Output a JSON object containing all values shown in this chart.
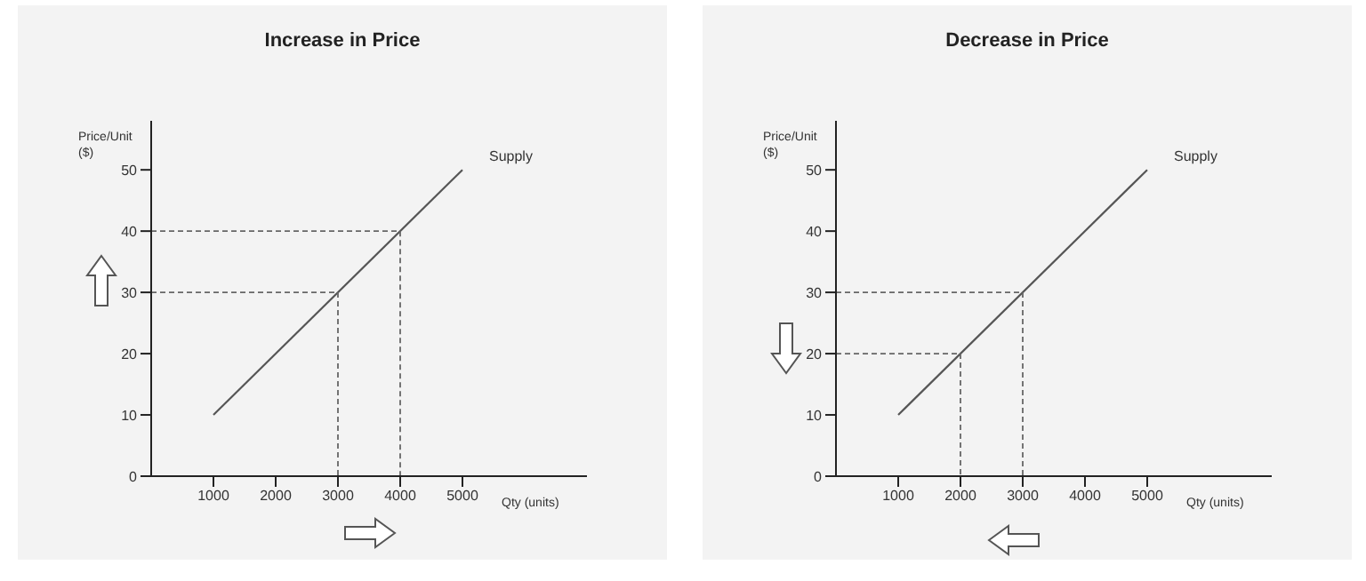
{
  "chart_data": [
    {
      "type": "line",
      "title": "Increase in Price",
      "xlabel": "Qty (units)",
      "ylabel": "Price/Unit ($)",
      "xlim": [
        0,
        7000
      ],
      "ylim": [
        0,
        58
      ],
      "xticks": [
        1000,
        2000,
        3000,
        4000,
        5000
      ],
      "yticks": [
        0,
        10,
        20,
        30,
        40,
        50
      ],
      "grid": false,
      "marker": "none",
      "series": [
        {
          "name": "Supply",
          "color": "#555555",
          "x": [
            1000,
            5000
          ],
          "values": [
            10,
            50
          ]
        },
        {
          "color": "#666666",
          "line_style": "dashed",
          "x": [
            0,
            3000,
            3000
          ],
          "values": [
            30,
            30,
            0
          ]
        },
        {
          "color": "#666666",
          "line_style": "dashed",
          "x": [
            0,
            4000,
            4000
          ],
          "values": [
            40,
            40,
            0
          ]
        }
      ]
    },
    {
      "type": "line",
      "title": "Decrease in Price",
      "xlabel": "Qty (units)",
      "ylabel": "Price/Unit ($)",
      "xlim": [
        0,
        7000
      ],
      "ylim": [
        0,
        58
      ],
      "xticks": [
        1000,
        2000,
        3000,
        4000,
        5000
      ],
      "yticks": [
        0,
        10,
        20,
        30,
        40,
        50
      ],
      "grid": false,
      "marker": "none",
      "series": [
        {
          "name": "Supply",
          "color": "#555555",
          "x": [
            1000,
            5000
          ],
          "values": [
            10,
            50
          ]
        },
        {
          "color": "#666666",
          "line_style": "dashed",
          "x": [
            0,
            2000,
            2000
          ],
          "values": [
            20,
            20,
            0
          ]
        },
        {
          "color": "#666666",
          "line_style": "dashed",
          "x": [
            0,
            3000,
            3000
          ],
          "values": [
            30,
            30,
            0
          ]
        }
      ]
    }
  ]
}
